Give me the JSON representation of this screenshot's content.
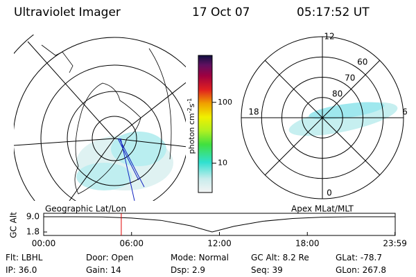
{
  "header": {
    "title": "Ultraviolet Imager",
    "date": "17 Oct 07",
    "time": "05:17:52 UT"
  },
  "geo_map": {
    "label": "Geographic Lat/Lon"
  },
  "colorbar": {
    "label_base": "photon cm",
    "label_exp1": "-2",
    "label_mid": "s",
    "label_exp2": "-1",
    "log": true,
    "lim": [
      3.3,
      590
    ],
    "ticks": [
      10,
      100
    ]
  },
  "apex_map": {
    "label": "Apex MLat/MLT",
    "mlt_ticks": [
      12,
      18,
      6,
      0
    ],
    "lat_lim": [
      50,
      90
    ],
    "lat_ticks": [
      60,
      70,
      80
    ]
  },
  "timeline": {
    "ylabel": "GC Alt",
    "ylim": [
      1.8,
      9.0
    ],
    "yticks": [
      {
        "value": 9.0,
        "label": "9.0"
      },
      {
        "value": 1.8,
        "label": "1.8"
      }
    ],
    "xlim": [
      0,
      24
    ],
    "xticks": [
      {
        "value": 0,
        "label": "00:00"
      },
      {
        "value": 6,
        "label": "06:00"
      },
      {
        "value": 12,
        "label": "12:00"
      },
      {
        "value": 18,
        "label": "18:00"
      },
      {
        "value": 23.983,
        "label": "23:59"
      }
    ],
    "marker": 5.298,
    "marker_color": "#e00000",
    "orbit": {
      "x": [
        0,
        2,
        4,
        6,
        8,
        10,
        11.5,
        13,
        15,
        17,
        19,
        21,
        24
      ],
      "values": [
        9.0,
        9.0,
        8.9,
        8.4,
        7.3,
        4.8,
        1.8,
        4.5,
        6.9,
        8.2,
        8.8,
        9.0,
        9.0
      ]
    }
  },
  "footer": {
    "rows": [
      [
        [
          "Flt:",
          "LBHL"
        ],
        [
          "Door:",
          "Open"
        ],
        [
          "Mode:",
          "Normal"
        ],
        [
          "GC Alt:",
          "8.2 Re"
        ],
        [
          "GLat:",
          "-78.7"
        ]
      ],
      [
        [
          "IP:",
          "36.0"
        ],
        [
          "Gain:",
          "14"
        ],
        [
          "Dsp:",
          "2.9"
        ],
        [
          "Seq:",
          "39"
        ],
        [
          "GLon:",
          "267.8"
        ]
      ]
    ]
  }
}
